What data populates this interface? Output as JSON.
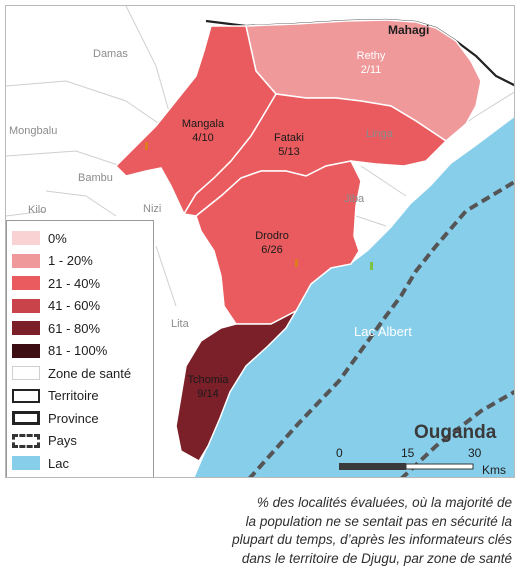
{
  "map": {
    "country_label": "Ouganda",
    "lake_label": "Lac Albert",
    "north_label": "Mahagi",
    "place_labels": [
      "Damas",
      "Mongbalu",
      "Bambu",
      "Kilo",
      "Nizi",
      "Lita",
      "Linga",
      "Jiba"
    ],
    "zones": [
      {
        "name": "Rethy",
        "value": "2/11",
        "class": "1 - 20%",
        "color": "#f0999b"
      },
      {
        "name": "Mangala",
        "value": "4/10",
        "class": "21 - 40%",
        "color": "#e95b5e"
      },
      {
        "name": "Fataki",
        "value": "5/13",
        "class": "21 - 40%",
        "color": "#e95b5e"
      },
      {
        "name": "Drodro",
        "value": "6/26",
        "class": "21 - 40%",
        "color": "#e95b5e"
      },
      {
        "name": "Tchomia",
        "value": "9/14",
        "class": "61 - 80%",
        "color": "#7b1f28"
      }
    ]
  },
  "legend": {
    "items": [
      {
        "label": "0%",
        "color": "#f9d3d3"
      },
      {
        "label": "1 - 20%",
        "color": "#f0999b"
      },
      {
        "label": "21 - 40%",
        "color": "#e95b5e"
      },
      {
        "label": "41 - 60%",
        "color": "#c8444a"
      },
      {
        "label": "61 - 80%",
        "color": "#7b1f28"
      },
      {
        "label": "81 - 100%",
        "color": "#3d0d14"
      },
      {
        "label": "Zone de santé",
        "color": "#ffffff"
      },
      {
        "label": "Territoire",
        "color": "#ffffff"
      },
      {
        "label": "Province",
        "color": "#ffffff"
      },
      {
        "label": "Pays",
        "color": "#ffffff"
      },
      {
        "label": "Lac",
        "color": "#87ceeb"
      }
    ]
  },
  "scale": {
    "ticks": [
      "0",
      "15",
      "30"
    ],
    "unit": "Kms"
  },
  "caption": {
    "lines": [
      "% des localités évaluées, où la majorité de",
      "la population ne se sentait pas en sécurité la",
      "plupart du temps, d’après les informateurs clés",
      "dans le territoire de Djugu, par zone de santé"
    ]
  }
}
